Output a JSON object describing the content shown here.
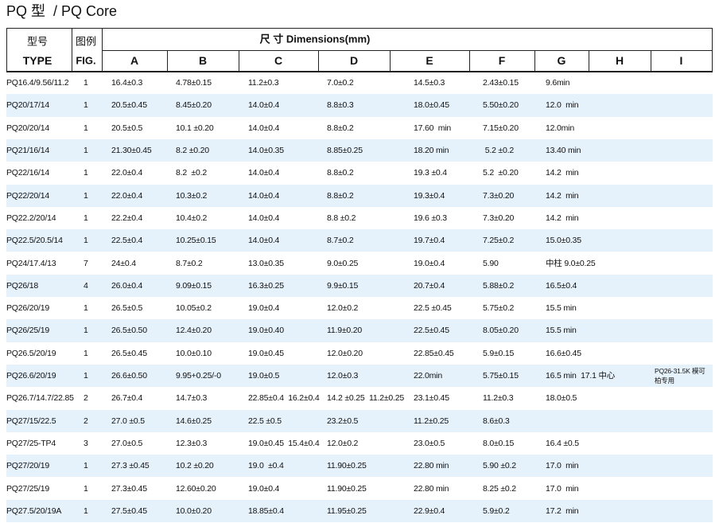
{
  "header": {
    "title": "PQ 型  / PQ Core"
  },
  "table": {
    "head": {
      "type_cn": "型号",
      "type_en": "TYPE",
      "fig_cn": "图例",
      "fig_en": "FIG.",
      "dimensions": "尺 寸 Dimensions(mm)",
      "columns": [
        "A",
        "B",
        "C",
        "D",
        "E",
        "F",
        "G",
        "H",
        "I"
      ]
    },
    "rows": [
      {
        "type": "PQ16.4/9.56/11.2",
        "fig": "1",
        "A": "16.4±0.3",
        "B": "4.78±0.15",
        "C": "11.2±0.3",
        "D": "7.0±0.2",
        "E": "14.5±0.3",
        "F": "2.43±0.15",
        "G": "9.6min"
      },
      {
        "type": "PQ20/17/14",
        "fig": "1",
        "A": "20.5±0.45",
        "B": "8.45±0.20",
        "C": "14.0±0.4",
        "D": "8.8±0.3",
        "E": "18.0±0.45",
        "F": "5.50±0.20",
        "G": "12.0  min"
      },
      {
        "type": "PQ20/20/14",
        "fig": "1",
        "A": "20.5±0.5",
        "B": "10.1 ±0.20",
        "C": "14.0±0.4",
        "D": "8.8±0.2",
        "E": "17.60  min",
        "F": "7.15±0.20",
        "G": "12.0min"
      },
      {
        "type": "PQ21/16/14",
        "fig": "1",
        "A": "21.30±0.45",
        "B": "8.2 ±0.20",
        "C": "14.0±0.35",
        "D": "8.85±0.25",
        "E": "18.20 min",
        "F": " 5.2 ±0.2",
        "G": "13.40 min"
      },
      {
        "type": "PQ22/16/14",
        "fig": "1",
        "A": "22.0±0.4",
        "B": "8.2  ±0.2",
        "C": "14.0±0.4",
        "D": "8.8±0.2",
        "E": "19.3 ±0.4",
        "F": "5.2  ±0.20",
        "G": "14.2  min"
      },
      {
        "type": "PQ22/20/14",
        "fig": "1",
        "A": "22.0±0.4",
        "B": "10.3±0.2",
        "C": "14.0±0.4",
        "D": "8.8±0.2",
        "E": "19.3±0.4",
        "F": "7.3±0.20",
        "G": "14.2  min"
      },
      {
        "type": "PQ22.2/20/14",
        "fig": "1",
        "A": "22.2±0.4",
        "B": "10.4±0.2",
        "C": "14.0±0.4",
        "D": "8.8 ±0.2",
        "E": "19.6 ±0.3",
        "F": "7.3±0.20",
        "G": "14.2  min"
      },
      {
        "type": "PQ22.5/20.5/14",
        "fig": "1",
        "A": "22.5±0.4",
        "B": "10.25±0.15",
        "C": "14.0±0.4",
        "D": "8.7±0.2",
        "E": "19.7±0.4",
        "F": "7.25±0.2",
        "G": "15.0±0.35"
      },
      {
        "type": "PQ24/17.4/13",
        "fig": "7",
        "A": "24±0.4",
        "B": "8.7±0.2",
        "C": "13.0±0.35",
        "D": "9.0±0.25",
        "E": "19.0±0.4",
        "F": "5.90",
        "G": "中柱 9.0±0.25"
      },
      {
        "type": "PQ26/18",
        "fig": "4",
        "A": "26.0±0.4",
        "B": "9.09±0.15",
        "C": "16.3±0.25",
        "D": "9.9±0.15",
        "E": "20.7±0.4",
        "F": "5.88±0.2",
        "G": "16.5±0.4"
      },
      {
        "type": "PQ26/20/19",
        "fig": "1",
        "A": "26.5±0.5",
        "B": "10.05±0.2",
        "C": "19.0±0.4",
        "D": "12.0±0.2",
        "E": "22.5 ±0.45",
        "F": "5.75±0.2",
        "G": "15.5 min"
      },
      {
        "type": "PQ26/25/19",
        "fig": "1",
        "A": "26.5±0.50",
        "B": "12.4±0.20",
        "C": "19.0±0.40",
        "D": "11.9±0.20",
        "E": "22.5±0.45",
        "F": "8.05±0.20",
        "G": "15.5 min"
      },
      {
        "type": "PQ26.5/20/19",
        "fig": "1",
        "A": "26.5±0.45",
        "B": "10.0±0.10",
        "C": "19.0±0.45",
        "D": "12.0±0.20",
        "E": "22.85±0.45",
        "F": "5.9±0.15",
        "G": "16.6±0.45"
      },
      {
        "type": "PQ26.6/20/19",
        "fig": "1",
        "A": "26.6±0.50",
        "B": "9.95+0.25/-0",
        "C": "19.0±0.5",
        "D": "12.0±0.3",
        "E": "22.0min",
        "F": "5.75±0.15",
        "G": "16.5 min  17.1 中心",
        "I": [
          "PQ26-31.5K 模可",
          "柏专用"
        ]
      },
      {
        "type": "PQ26.7/14.7/22.85",
        "fig": "2",
        "A": "26.7±0.4",
        "B": "14.7±0.3",
        "C": "22.85±0.4  16.2±0.4",
        "D": "14.2 ±0.25  11.2±0.25",
        "E": "23.1±0.45",
        "F": "11.2±0.3",
        "G": "18.0±0.5"
      },
      {
        "type": "PQ27/15/22.5",
        "fig": "2",
        "A": "27.0 ±0.5",
        "B": "14.6±0.25",
        "C": "22.5 ±0.5",
        "D": "23.2±0.5",
        "E": "11.2±0.25",
        "F": "8.6±0.3"
      },
      {
        "type": "PQ27/25-TP4",
        "fig": "3",
        "A": "27.0±0.5",
        "B": "12.3±0.3",
        "C": "19.0±0.45  15.4±0.4",
        "D": "12.0±0.2",
        "E": "23.0±0.5",
        "F": "8.0±0.15",
        "G": "16.4 ±0.5"
      },
      {
        "type": "PQ27/20/19",
        "fig": "1",
        "A": "27.3 ±0.45",
        "B": "10.2 ±0.20",
        "C": "19.0  ±0.4",
        "D": "11.90±0.25",
        "E": "22.80 min",
        "F": "5.90 ±0.2",
        "G": "17.0  min"
      },
      {
        "type": "PQ27/25/19",
        "fig": "1",
        "A": "27.3±0.45",
        "B": "12.60±0.20",
        "C": "19.0±0.4",
        "D": "11.90±0.25",
        "E": "22.80 min",
        "F": "8.25 ±0.2",
        "G": "17.0  min"
      },
      {
        "type": "PQ27.5/20/19A",
        "fig": "1",
        "A": "27.5±0.45",
        "B": "10.0±0.20",
        "C": "18.85±0.4",
        "D": "11.95±0.25",
        "E": "22.9±0.4",
        "F": "5.9±0.2",
        "G": "17.2  min"
      }
    ]
  }
}
